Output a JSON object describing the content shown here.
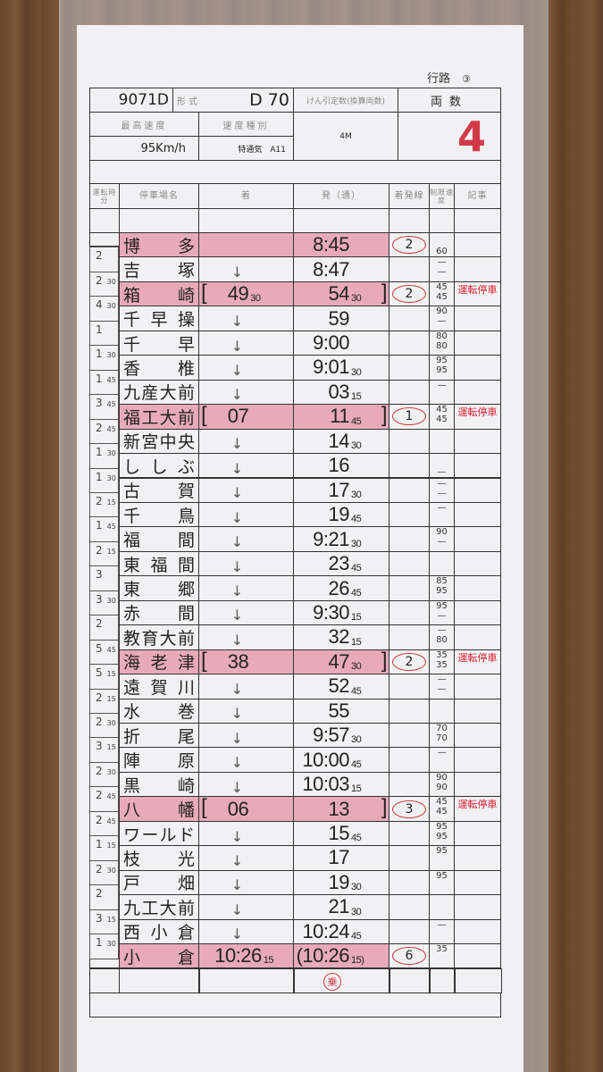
{
  "header": {
    "route_label": "行路",
    "route_no": "③",
    "train_no": "9071D",
    "type_label": "形式",
    "type_value": "D 70",
    "tonnage_label": "けん引定数(換算両数)",
    "cars_label": "両数",
    "max_speed_label": "最高速度",
    "speed_class_label": "速度種別",
    "max_speed": "95Km/h",
    "speed_class": "特通気　A11",
    "tonnage_value": "4M",
    "cars_value": "4"
  },
  "columns": {
    "runtime": "運転時分",
    "station": "停車場名",
    "arrive": "着",
    "depart": "発（通）",
    "track": "着発線",
    "speed": "制限速度",
    "remark": "記事"
  },
  "colors": {
    "stop_highlight": "#e8aabb",
    "red": "#d23a4a"
  },
  "runtimes": [
    [
      "2",
      ""
    ],
    [
      "2",
      "30"
    ],
    [
      "4",
      "30"
    ],
    [
      "1",
      ""
    ],
    [
      "1",
      "30"
    ],
    [
      "1",
      "45"
    ],
    [
      "3",
      "45"
    ],
    [
      "2",
      "45"
    ],
    [
      "1",
      "30"
    ],
    [
      "1",
      "30"
    ],
    [
      "2",
      "15"
    ],
    [
      "1",
      "45"
    ],
    [
      "2",
      "15"
    ],
    [
      "3",
      ""
    ],
    [
      "3",
      "30"
    ],
    [
      "2",
      ""
    ],
    [
      "5",
      "45"
    ],
    [
      "5",
      "15"
    ],
    [
      "2",
      "15"
    ],
    [
      "2",
      "30"
    ],
    [
      "3",
      "15"
    ],
    [
      "2",
      "30"
    ],
    [
      "2",
      "45"
    ],
    [
      "2",
      "45"
    ],
    [
      "1",
      "15"
    ],
    [
      "2",
      "30"
    ],
    [
      "2",
      ""
    ],
    [
      "3",
      "15"
    ],
    [
      "1",
      "30"
    ]
  ],
  "stations": [
    {
      "name": "博　多",
      "stop": true,
      "arr": "",
      "arr_s": "",
      "dep": "8:45",
      "dep_s": "",
      "bracket": false,
      "track": "2",
      "speed": [
        "",
        "60"
      ],
      "remark": ""
    },
    {
      "name": "吉　塚",
      "stop": false,
      "arr": "↓",
      "arr_s": "",
      "dep": "8:47",
      "dep_s": "",
      "bracket": false,
      "track": "",
      "speed": [
        "—",
        "—"
      ],
      "remark": ""
    },
    {
      "name": "箱　崎",
      "stop": true,
      "arr": "49",
      "arr_s": "30",
      "dep": "54",
      "dep_s": "30",
      "bracket": true,
      "track": "2",
      "speed": [
        "45",
        "45"
      ],
      "remark": "運転停車"
    },
    {
      "name": "千早操",
      "stop": false,
      "arr": "↓",
      "arr_s": "",
      "dep": "59",
      "dep_s": "",
      "bracket": false,
      "track": "",
      "speed": [
        "90",
        "—"
      ],
      "remark": ""
    },
    {
      "name": "千　早",
      "stop": false,
      "arr": "↓",
      "arr_s": "",
      "dep": "9:00",
      "dep_s": "",
      "bracket": false,
      "track": "",
      "speed": [
        "80",
        "80"
      ],
      "remark": ""
    },
    {
      "name": "香　椎",
      "stop": false,
      "arr": "↓",
      "arr_s": "",
      "dep": "9:01",
      "dep_s": "30",
      "bracket": false,
      "track": "",
      "speed": [
        "95",
        "95"
      ],
      "remark": ""
    },
    {
      "name": "九産大前",
      "stop": false,
      "arr": "↓",
      "arr_s": "",
      "dep": "03",
      "dep_s": "15",
      "bracket": false,
      "track": "",
      "speed": [
        "—",
        ""
      ],
      "remark": ""
    },
    {
      "name": "福工大前",
      "stop": true,
      "arr": "07",
      "arr_s": "",
      "dep": "11",
      "dep_s": "45",
      "bracket": true,
      "track": "1",
      "speed": [
        "45",
        "45"
      ],
      "remark": "運転停車"
    },
    {
      "name": "新宮中央",
      "stop": false,
      "arr": "↓",
      "arr_s": "",
      "dep": "14",
      "dep_s": "30",
      "bracket": false,
      "track": "",
      "speed": [
        "",
        ""
      ],
      "remark": ""
    },
    {
      "name": "ししぶ",
      "stop": false,
      "arr": "↓",
      "arr_s": "",
      "dep": "16",
      "dep_s": "",
      "bracket": false,
      "track": "",
      "speed": [
        "",
        "—"
      ],
      "remark": ""
    },
    {
      "name": "古　賀",
      "stop": false,
      "arr": "↓",
      "arr_s": "",
      "dep": "17",
      "dep_s": "30",
      "bracket": false,
      "track": "",
      "speed": [
        "—",
        "—"
      ],
      "remark": ""
    },
    {
      "name": "千　鳥",
      "stop": false,
      "arr": "↓",
      "arr_s": "",
      "dep": "19",
      "dep_s": "45",
      "bracket": false,
      "track": "",
      "speed": [
        "—",
        ""
      ],
      "remark": ""
    },
    {
      "name": "福　間",
      "stop": false,
      "arr": "↓",
      "arr_s": "",
      "dep": "9:21",
      "dep_s": "30",
      "bracket": false,
      "track": "",
      "speed": [
        "90",
        "—"
      ],
      "remark": ""
    },
    {
      "name": "東福間",
      "stop": false,
      "arr": "↓",
      "arr_s": "",
      "dep": "23",
      "dep_s": "45",
      "bracket": false,
      "track": "",
      "speed": [
        "",
        ""
      ],
      "remark": ""
    },
    {
      "name": "東　郷",
      "stop": false,
      "arr": "↓",
      "arr_s": "",
      "dep": "26",
      "dep_s": "45",
      "bracket": false,
      "track": "",
      "speed": [
        "85",
        "95"
      ],
      "remark": ""
    },
    {
      "name": "赤　間",
      "stop": false,
      "arr": "↓",
      "arr_s": "",
      "dep": "9:30",
      "dep_s": "15",
      "bracket": false,
      "track": "",
      "speed": [
        "95",
        "—"
      ],
      "remark": ""
    },
    {
      "name": "教育大前",
      "stop": false,
      "arr": "↓",
      "arr_s": "",
      "dep": "32",
      "dep_s": "15",
      "bracket": false,
      "track": "",
      "speed": [
        "—",
        "80"
      ],
      "remark": ""
    },
    {
      "name": "海老津",
      "stop": true,
      "arr": "38",
      "arr_s": "",
      "dep": "47",
      "dep_s": "30",
      "bracket": true,
      "track": "2",
      "speed": [
        "35",
        "35"
      ],
      "remark": "運転停車"
    },
    {
      "name": "遠賀川",
      "stop": false,
      "arr": "↓",
      "arr_s": "",
      "dep": "52",
      "dep_s": "45",
      "bracket": false,
      "track": "",
      "speed": [
        "—",
        "—"
      ],
      "remark": ""
    },
    {
      "name": "水　巻",
      "stop": false,
      "arr": "↓",
      "arr_s": "",
      "dep": "55",
      "dep_s": "",
      "bracket": false,
      "track": "",
      "speed": [
        "",
        ""
      ],
      "remark": ""
    },
    {
      "name": "折　尾",
      "stop": false,
      "arr": "↓",
      "arr_s": "",
      "dep": "9:57",
      "dep_s": "30",
      "bracket": false,
      "track": "",
      "speed": [
        "70",
        "70"
      ],
      "remark": ""
    },
    {
      "name": "陣　原",
      "stop": false,
      "arr": "↓",
      "arr_s": "",
      "dep": "10:00",
      "dep_s": "45",
      "bracket": false,
      "track": "",
      "speed": [
        "—",
        ""
      ],
      "remark": ""
    },
    {
      "name": "黒　崎",
      "stop": false,
      "arr": "↓",
      "arr_s": "",
      "dep": "10:03",
      "dep_s": "15",
      "bracket": false,
      "track": "",
      "speed": [
        "90",
        "90"
      ],
      "remark": ""
    },
    {
      "name": "八　幡",
      "stop": true,
      "arr": "06",
      "arr_s": "",
      "dep": "13",
      "dep_s": "",
      "bracket": true,
      "track": "3",
      "speed": [
        "45",
        "45"
      ],
      "remark": "運転停車"
    },
    {
      "name": "ワールド",
      "stop": false,
      "arr": "↓",
      "arr_s": "",
      "dep": "15",
      "dep_s": "45",
      "bracket": false,
      "track": "",
      "speed": [
        "95",
        "95"
      ],
      "remark": ""
    },
    {
      "name": "枝　光",
      "stop": false,
      "arr": "↓",
      "arr_s": "",
      "dep": "17",
      "dep_s": "",
      "bracket": false,
      "track": "",
      "speed": [
        "95",
        ""
      ],
      "remark": ""
    },
    {
      "name": "戸　畑",
      "stop": false,
      "arr": "↓",
      "arr_s": "",
      "dep": "19",
      "dep_s": "30",
      "bracket": false,
      "track": "",
      "speed": [
        "95",
        ""
      ],
      "remark": ""
    },
    {
      "name": "九工大前",
      "stop": false,
      "arr": "↓",
      "arr_s": "",
      "dep": "21",
      "dep_s": "30",
      "bracket": false,
      "track": "",
      "speed": [
        "",
        ""
      ],
      "remark": ""
    },
    {
      "name": "西小倉",
      "stop": false,
      "arr": "↓",
      "arr_s": "",
      "dep": "10:24",
      "dep_s": "45",
      "bracket": false,
      "track": "",
      "speed": [
        "—",
        ""
      ],
      "remark": ""
    },
    {
      "name": "小　倉",
      "stop": true,
      "arr": "10:26",
      "arr_s": "15",
      "dep": "(10:26",
      "dep_s": "15)",
      "bracket": false,
      "track": "6",
      "speed": [
        "35",
        ""
      ],
      "remark": ""
    }
  ],
  "stamp": "乗"
}
